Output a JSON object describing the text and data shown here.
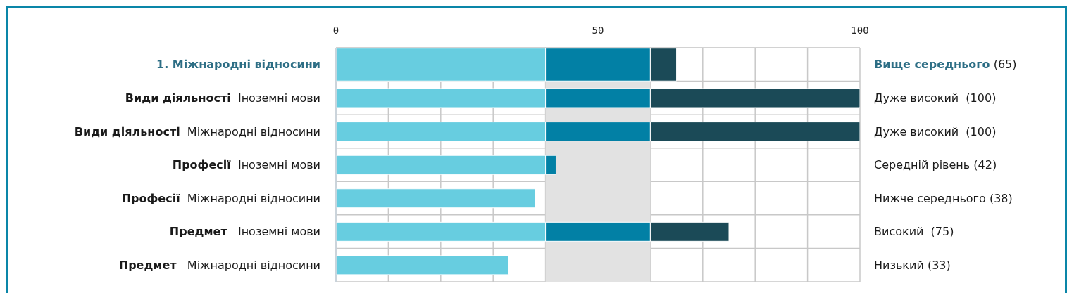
{
  "chart_data": {
    "type": "bar",
    "orientation": "horizontal",
    "stacked": true,
    "categories": [
      "1. Міжнародні відносини",
      "Види діяльності  Іноземні мови",
      "Види діяльності  Міжнародні відносини",
      "Професії  Іноземні мови",
      "Професії  Міжнародні відносини",
      "Предмет   Іноземні мови",
      "Предмет   Міжнародні відносини"
    ],
    "y2_categories": [
      "Вище середнього (65)",
      "Дуже високий  (100)",
      "Дуже високий  (100)",
      "Середній рівень (42)",
      "Нижче середнього (38)",
      "Високий  (75)",
      "Низький (33)"
    ],
    "series": [
      {
        "color": "#67cde0",
        "values": [
          40,
          40,
          40,
          40,
          38,
          40,
          33
        ]
      },
      {
        "color": "#0280a5",
        "values": [
          20,
          20,
          20,
          2,
          null,
          20,
          null
        ]
      },
      {
        "color": "#1b4a57",
        "values": [
          5,
          40,
          40,
          null,
          null,
          15,
          null
        ]
      }
    ],
    "xlim": [
      0,
      100
    ],
    "xticks": [
      0,
      {
        "value": 10,
        "label": null
      },
      {
        "value": 20,
        "label": null
      },
      {
        "value": 30,
        "label": null
      },
      {
        "value": 40,
        "label": null
      },
      50,
      {
        "value": 60,
        "label": null
      },
      {
        "value": 70,
        "label": null
      },
      {
        "value": 80,
        "label": null
      },
      {
        "value": 90,
        "label": null
      },
      100
    ],
    "bands": [
      {
        "axis": "x",
        "from": 40,
        "to": 60,
        "color": "#e2e2e2"
      }
    ],
    "grid": true
  }
}
